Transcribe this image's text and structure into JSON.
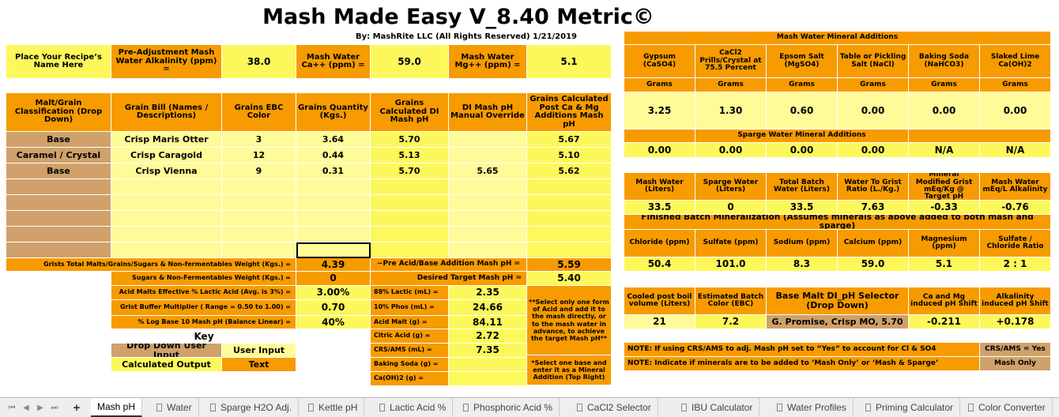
{
  "title": "Mash Made Easy V_8.40 Metric©",
  "subtitle": "By: MashRite LLC (All Rights Reserved) 1/21/2019",
  "recipe": {
    "label": "Place Your Recipe’s Name Here",
    "alk_label": "Pre-Adjustment Mash Water Alkalinity (ppm) =",
    "alk_value": "38.0",
    "ca_label": "Mash Water Ca++ (ppm) =",
    "ca_value": "59.0",
    "mg_label": "Mash Water Mg++ (ppm) =",
    "mg_value": "5.1"
  },
  "grain_table": {
    "headers": [
      "Malt/Grain Classification (Drop Down)",
      "Grain Bill (Names / Descriptions)",
      "Grains EBC Color",
      "Grains Quantity (Kgs.)",
      "Grains Calculated DI Mash pH",
      "DI Mash pH Manual Override",
      "Grains Calculated Post Ca & Mg Additions Mash pH"
    ],
    "rows": [
      [
        "Base",
        "Crisp Maris Otter",
        "3",
        "3.64",
        "5.70",
        "",
        "5.67"
      ],
      [
        "Caramel / Crystal",
        "Crisp Caragold",
        "12",
        "0.44",
        "5.13",
        "",
        "5.10"
      ],
      [
        "Base",
        "Crisp Vienna",
        "9",
        "0.31",
        "5.70",
        "5.65",
        "5.62"
      ],
      [
        "",
        "",
        "",
        "",
        "",
        "",
        ""
      ],
      [
        "",
        "",
        "",
        "",
        "",
        "",
        ""
      ],
      [
        "",
        "",
        "",
        "",
        "",
        "",
        ""
      ],
      [
        "",
        "",
        "",
        "",
        "",
        "",
        ""
      ],
      [
        "",
        "",
        "",
        "",
        "",
        "",
        ""
      ]
    ]
  },
  "totals": {
    "grist_label": "Grists Total Malts/Grains/Sugars & Non-fermentables Weight (Kgs.) =",
    "grist_value": "4.39",
    "pre_ph_label": "~Pre Acid/Base Addition Mash pH =",
    "pre_ph_value": "5.59",
    "sugars_label": "Sugars & Non-Fermentables Weight (Kgs.) =",
    "sugars_value": "0",
    "target_label": "Desired Target Mash pH =",
    "target_value": "5.40",
    "acid_malt_pct_label": "Acid Malts Effective % Lactic Acid (Avg. is 3%) =",
    "acid_malt_pct_value": "3.00%",
    "buffer_label": "Grist Buffer Multiplier ( Range = 0.50 to 1.00) =",
    "buffer_value": "0.70",
    "log_label": "% Log Base 10 Mash pH (Balance Linear) =",
    "log_value": "40%"
  },
  "acids": [
    {
      "label": "88%  Lactic (mL) =",
      "value": "2.35"
    },
    {
      "label": "10%  Phos  (mL) =",
      "value": "24.66"
    },
    {
      "label": "Acid Malt (g)  =",
      "value": "84.11"
    },
    {
      "label": "Citric Acid (g) =",
      "value": "2.72"
    },
    {
      "label": "CRS/AMS (mL) =",
      "value": "7.35"
    },
    {
      "label": "Baking Soda (g) =",
      "value": ""
    },
    {
      "label": "Ca(OH)2 (g) =",
      "value": ""
    }
  ],
  "acid_note": "**Select only one form of Acid and add it to the mash directly, or to the mash water in advance, to achieve the target Mash pH**",
  "base_note": "*Select one base and enter it as a Mineral Addition (Top Right)",
  "key": {
    "title": "Key",
    "dropdown": "Drop Down User Input",
    "user_input": "User Input",
    "calculated": "Calculated Output",
    "text": "Text"
  },
  "minerals": {
    "title": "Mash Water Mineral Additions",
    "headers": [
      "Gypsum (CaSO4)",
      "CaCl2 Prills/Crystal at 75.5 Percent",
      "Epsom Salt (MgSO4)",
      "Table or Pickling Salt (NaCl)",
      "Baking Soda (NaHCO3)",
      "Slaked Lime Ca(OH)2"
    ],
    "unit": "Grams",
    "mash_values": [
      "3.25",
      "1.30",
      "0.60",
      "0.00",
      "0.00",
      "0.00"
    ],
    "sparge_title": "Sparge Water Mineral Additions",
    "sparge_values": [
      "0.00",
      "0.00",
      "0.00",
      "0.00",
      "N/A",
      "N/A"
    ]
  },
  "water": {
    "headers": [
      "Mash Water (Liters)",
      "Sparge Water (Liters)",
      "Total Batch Water (Liters)",
      "Water To Grist Ratio (L./Kg.)",
      "Mineral Modified Grist mEq/Kg @ Target pH",
      "Mash Water mEq/L Alkalinity"
    ],
    "values": [
      "33.5",
      "0",
      "33.5",
      "7.63",
      "-0.33",
      "-0.76"
    ]
  },
  "finished": {
    "title": "Finished Batch Mineralization (Assumes minerals as above added to both mash and sparge)",
    "headers": [
      "Chloride (ppm)",
      "Sulfate (ppm)",
      "Sodium (ppm)",
      "Calcium (ppm)",
      "Magnesium (ppm)",
      "Sulfate / Chloride Ratio"
    ],
    "values": [
      "50.4",
      "101.0",
      "8.3",
      "59.0",
      "5.1",
      "2 : 1"
    ]
  },
  "boil": {
    "headers": [
      "Cooled post boil volume (Liters)",
      "Estimated Batch Color (EBC)",
      "Base Malt DI_pH Selector (Drop Down)",
      "Ca and Mg induced pH Shift",
      "Alkalinity induced pH Shift"
    ],
    "values": [
      "21",
      "7.2",
      "G. Promise, Crisp MO, 5.70",
      "-0.211",
      "+0.178"
    ]
  },
  "notes": {
    "crs": "NOTE: If using CRS/AMS to adj. Mash pH set to “Yes” to account for Cl & SO4",
    "crs_value": "CRS/AMS = Yes",
    "minerals": "NOTE: Indicate if minerals are to be added to ‘Mash Only’ or ‘Mash & Sparge’",
    "minerals_value": "Mash Only"
  },
  "tabs": [
    "Mash pH",
    "Water",
    "Sparge H2O Adj.",
    "Kettle pH",
    "Lactic Acid %",
    "Phosphoric Acid %",
    "CaCl2 Selector",
    "IBU Calculator",
    "Water Profiles",
    "Priming Calculator",
    "Color Converter"
  ],
  "colors": {
    "orange": "#f79b00",
    "yellow": "#fcf85b",
    "light_yellow": "#fffb98",
    "tan": "#d0a16a"
  }
}
